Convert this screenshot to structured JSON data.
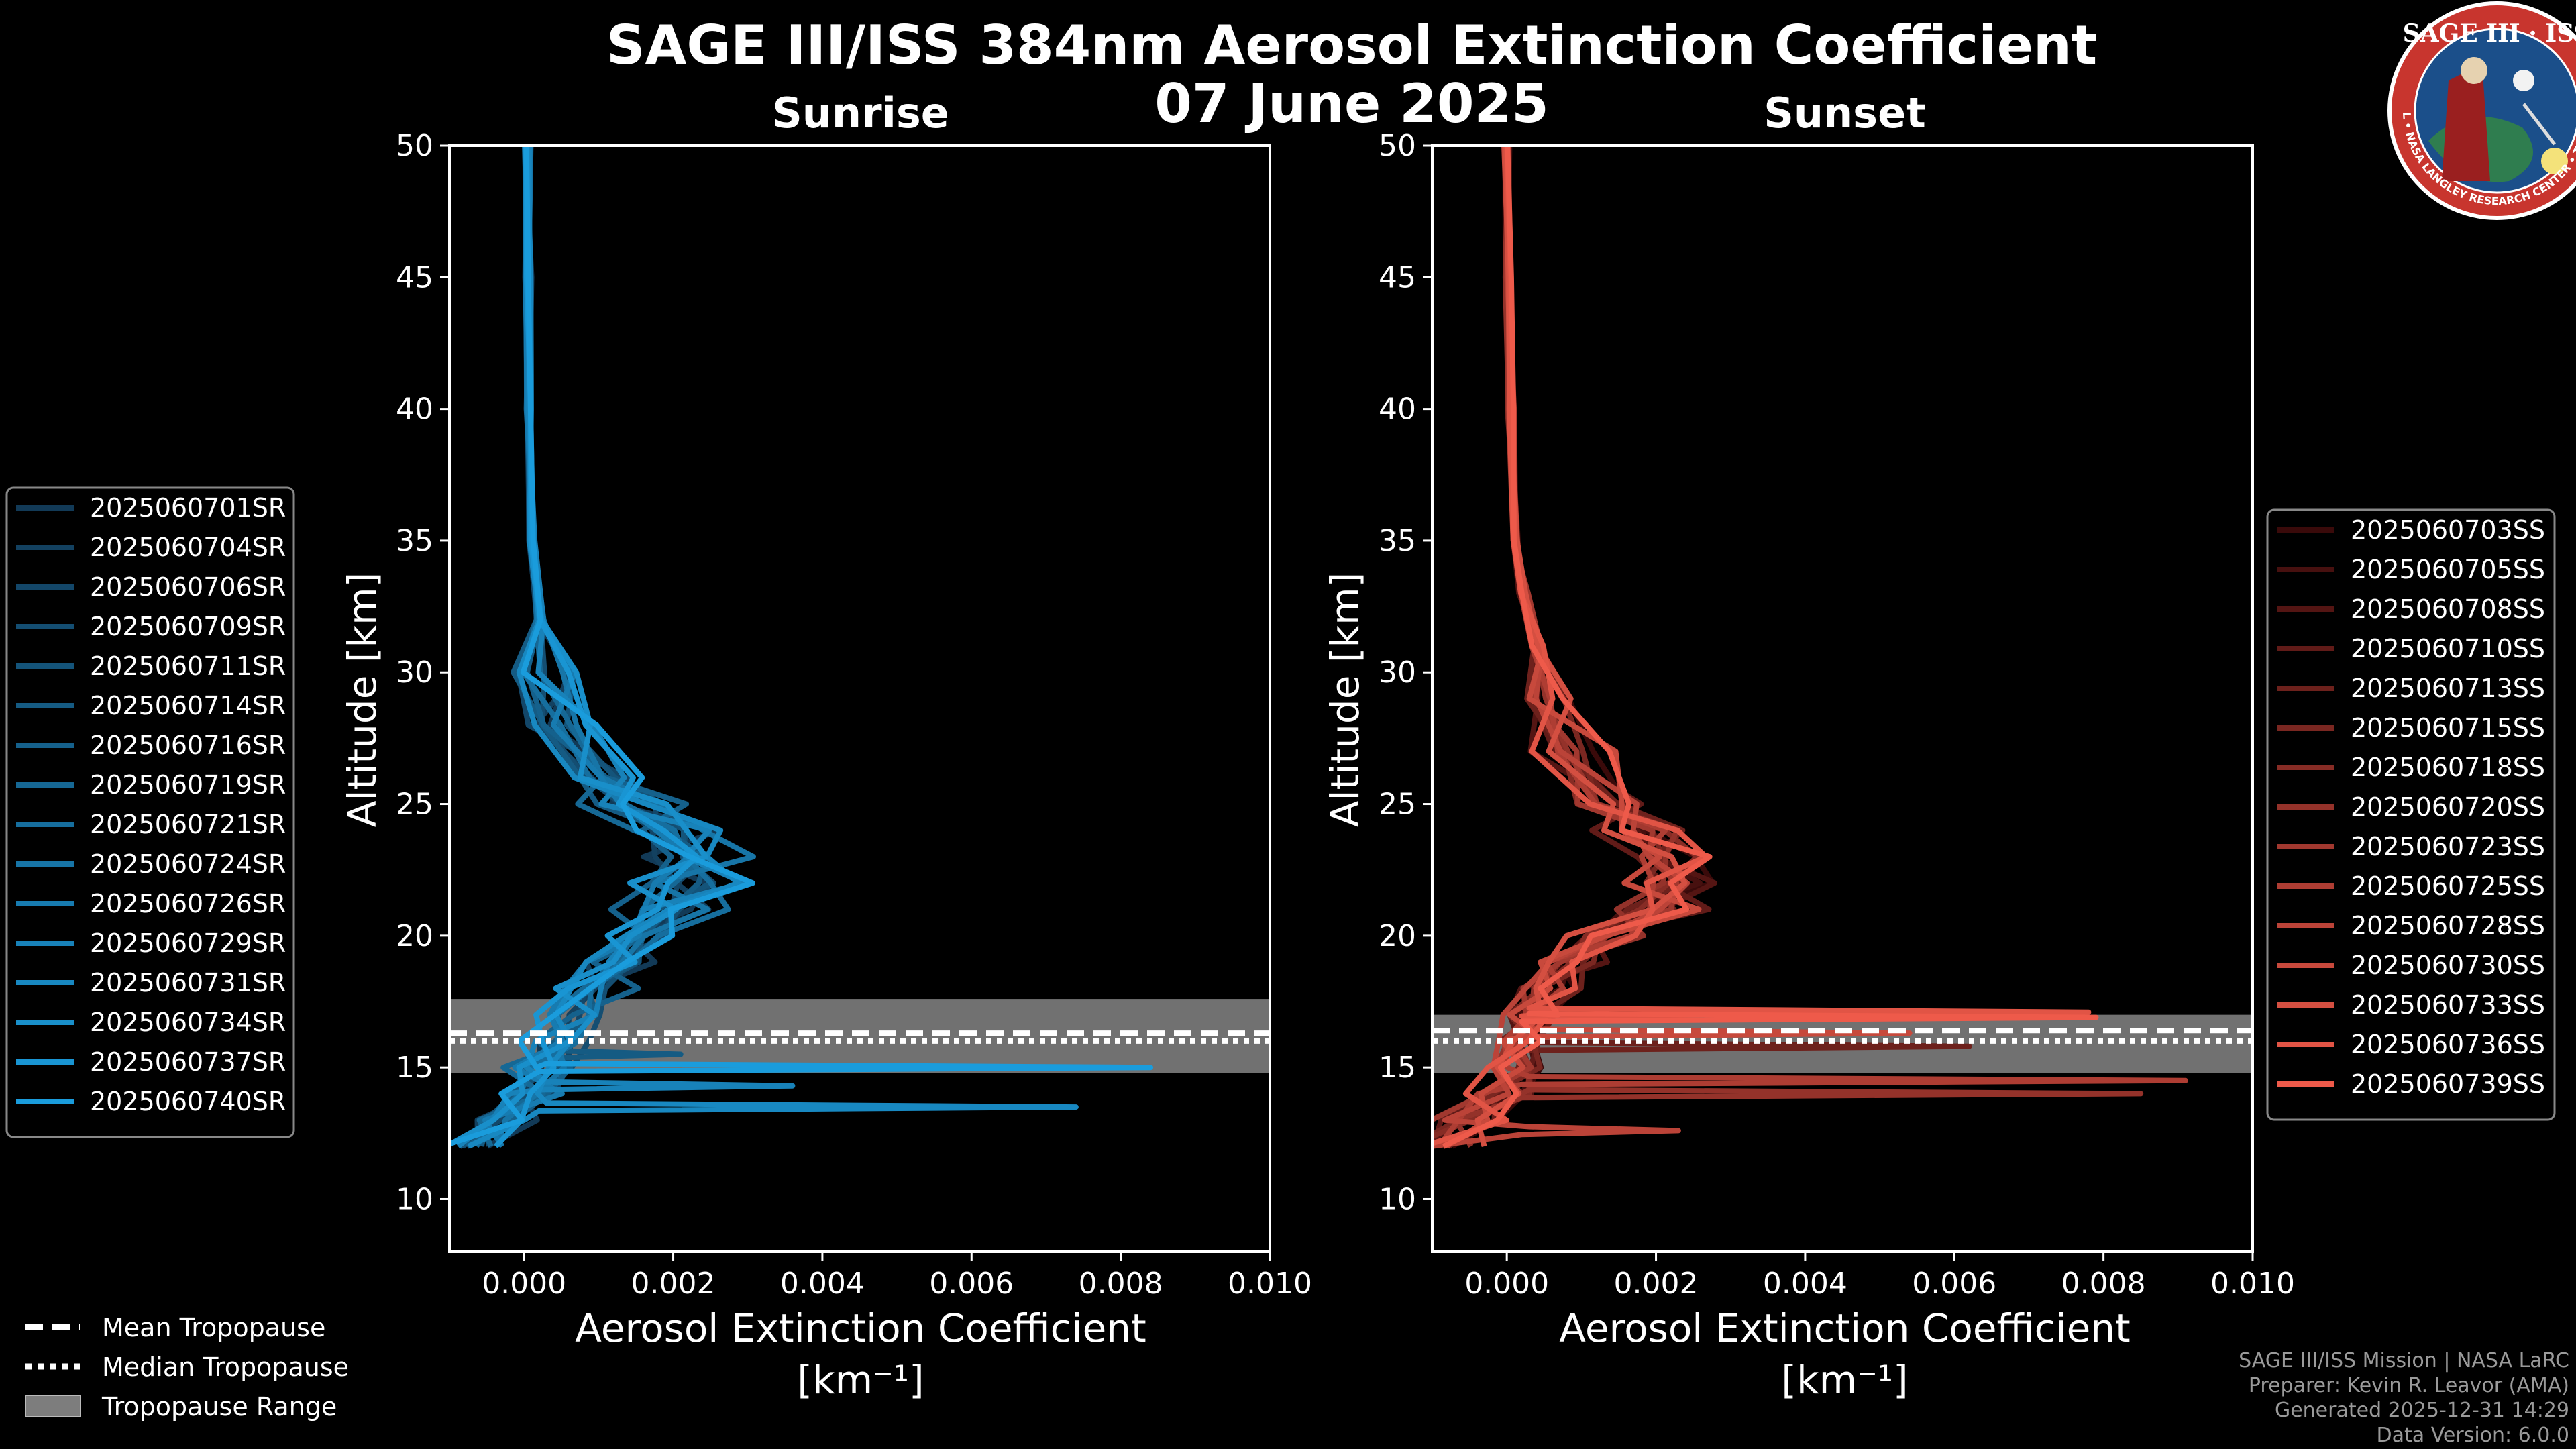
{
  "header": {
    "title_line1": "SAGE III/ISS 384nm Aerosol Extinction Coefficient",
    "title_line2": "07 June 2025"
  },
  "logo": {
    "top_text": "SAGE III · ISS",
    "ring_text": "BALL • NASA LANGLEY RESEARCH CENTER • TAS-I • ESA",
    "colors": {
      "ring": "#c8352e",
      "field": "#1b4f8a",
      "border": "#ffffff"
    }
  },
  "credits": {
    "line1": "SAGE III/ISS Mission | NASA LaRC",
    "line2": "Preparer: Kevin R. Leavor (AMA)",
    "line3": "Generated 2025-12-31 14:29",
    "line4": "Data Version: 6.0.0"
  },
  "common_legend": {
    "mean": "Mean Tropopause",
    "median": "Median Tropopause",
    "range": "Tropopause Range"
  },
  "chart_data": [
    {
      "type": "line",
      "title": "Sunrise",
      "xlabel": "Aerosol Extinction Coefficient",
      "xunit": "[km⁻¹]",
      "ylabel": "Altitude [km]",
      "xlim": [
        -0.001,
        0.01
      ],
      "ylim": [
        8,
        50
      ],
      "xticks": [
        "0.000",
        "0.002",
        "0.004",
        "0.006",
        "0.008",
        "0.010"
      ],
      "xtick_values": [
        0,
        0.002,
        0.004,
        0.006,
        0.008,
        0.01
      ],
      "yticks": [
        "10",
        "15",
        "20",
        "25",
        "30",
        "35",
        "40",
        "45",
        "50"
      ],
      "ytick_values": [
        10,
        15,
        20,
        25,
        30,
        35,
        40,
        45,
        50
      ],
      "tropopause": {
        "mean": 16.3,
        "median": 16.0,
        "range": [
          14.8,
          17.6
        ]
      },
      "base_profile": [
        [
          50,
          5e-05
        ],
        [
          45,
          5e-05
        ],
        [
          40,
          6e-05
        ],
        [
          35,
          0.0001
        ],
        [
          32,
          0.0002
        ],
        [
          30,
          0.0003
        ],
        [
          28,
          0.0005
        ],
        [
          26,
          0.001
        ],
        [
          25,
          0.0014
        ],
        [
          24,
          0.0019
        ],
        [
          23,
          0.0021
        ],
        [
          22,
          0.0022
        ],
        [
          21,
          0.0019
        ],
        [
          20,
          0.0016
        ],
        [
          19,
          0.0012
        ],
        [
          18,
          0.0009
        ],
        [
          17,
          0.0006
        ],
        [
          16,
          0.0004
        ],
        [
          15,
          0.0002
        ],
        [
          14,
          0.0001
        ],
        [
          13,
          -0.0002
        ],
        [
          12,
          -0.0007
        ]
      ],
      "colors": {
        "start": "#123a57",
        "end": "#1a9cdc"
      },
      "spikes": [
        {
          "series": 15,
          "alt": 15.0,
          "value": 0.0084
        },
        {
          "series": 11,
          "alt": 14.3,
          "value": 0.0036
        },
        {
          "series": 12,
          "alt": 13.5,
          "value": 0.0074
        },
        {
          "series": 5,
          "alt": 15.5,
          "value": 0.0021
        }
      ],
      "legend_position": "outside-left",
      "series": [
        "2025060701SR",
        "2025060704SR",
        "2025060706SR",
        "2025060709SR",
        "2025060711SR",
        "2025060714SR",
        "2025060716SR",
        "2025060719SR",
        "2025060721SR",
        "2025060724SR",
        "2025060726SR",
        "2025060729SR",
        "2025060731SR",
        "2025060734SR",
        "2025060737SR",
        "2025060740SR"
      ]
    },
    {
      "type": "line",
      "title": "Sunset",
      "xlabel": "Aerosol Extinction Coefficient",
      "xunit": "[km⁻¹]",
      "ylabel": "Altitude [km]",
      "xlim": [
        -0.001,
        0.01
      ],
      "ylim": [
        8,
        50
      ],
      "xticks": [
        "0.000",
        "0.002",
        "0.004",
        "0.006",
        "0.008",
        "0.010"
      ],
      "xtick_values": [
        0,
        0.002,
        0.004,
        0.006,
        0.008,
        0.01
      ],
      "yticks": [
        "10",
        "15",
        "20",
        "25",
        "30",
        "35",
        "40",
        "45",
        "50"
      ],
      "ytick_values": [
        10,
        15,
        20,
        25,
        30,
        35,
        40,
        45,
        50
      ],
      "tropopause": {
        "mean": 16.4,
        "median": 16.0,
        "range": [
          14.8,
          17.0
        ]
      },
      "base_profile": [
        [
          50,
          0.0
        ],
        [
          45,
          2e-05
        ],
        [
          40,
          5e-05
        ],
        [
          35,
          0.0001
        ],
        [
          33,
          0.0002
        ],
        [
          31,
          0.0004
        ],
        [
          29,
          0.0006
        ],
        [
          27,
          0.0009
        ],
        [
          25,
          0.0013
        ],
        [
          24,
          0.0017
        ],
        [
          23,
          0.002
        ],
        [
          22,
          0.0021
        ],
        [
          21,
          0.0019
        ],
        [
          20,
          0.0014
        ],
        [
          19,
          0.0009
        ],
        [
          18,
          0.0006
        ],
        [
          17,
          0.0004
        ],
        [
          16,
          0.0002
        ],
        [
          15,
          0.0001
        ],
        [
          14,
          -0.0001
        ],
        [
          13,
          -0.0005
        ],
        [
          12,
          -0.0009
        ]
      ],
      "colors": {
        "start": "#3a0a0a",
        "end": "#ee5a4a"
      },
      "spikes": [
        {
          "series": 14,
          "alt": 16.9,
          "value": 0.0079
        },
        {
          "series": 13,
          "alt": 17.1,
          "value": 0.0078
        },
        {
          "series": 11,
          "alt": 16.3,
          "value": 0.0054
        },
        {
          "series": 9,
          "alt": 14.5,
          "value": 0.0091
        },
        {
          "series": 7,
          "alt": 14.0,
          "value": 0.0085
        },
        {
          "series": 10,
          "alt": 12.6,
          "value": 0.0023
        },
        {
          "series": 4,
          "alt": 15.8,
          "value": 0.0062
        }
      ],
      "legend_position": "outside-right",
      "series": [
        "2025060703SS",
        "2025060705SS",
        "2025060708SS",
        "2025060710SS",
        "2025060713SS",
        "2025060715SS",
        "2025060718SS",
        "2025060720SS",
        "2025060723SS",
        "2025060725SS",
        "2025060728SS",
        "2025060730SS",
        "2025060733SS",
        "2025060736SS",
        "2025060739SS"
      ]
    }
  ]
}
